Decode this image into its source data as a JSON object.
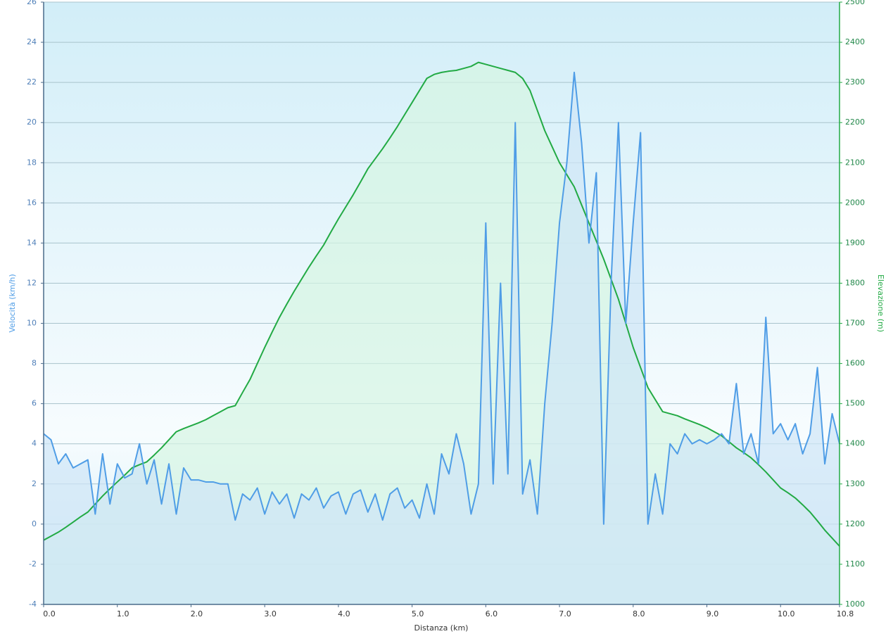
{
  "chart_data": {
    "type": "line",
    "y_label": "Velocità (km/h)",
    "y2_label": "Elevazione (m)",
    "x_label": "Distanza  (km)",
    "xlim": [
      0,
      10.8
    ],
    "xticks": [
      {
        "value": 0,
        "label": "0.0"
      },
      {
        "value": 1,
        "label": "1.0"
      },
      {
        "value": 2,
        "label": "2.0"
      },
      {
        "value": 3,
        "label": "3.0"
      },
      {
        "value": 4,
        "label": "4.0"
      },
      {
        "value": 5,
        "label": "5.0"
      },
      {
        "value": 6,
        "label": "6.0"
      },
      {
        "value": 7,
        "label": "7.0"
      },
      {
        "value": 8,
        "label": "8.0"
      },
      {
        "value": 9,
        "label": "9.0"
      },
      {
        "value": 10,
        "label": "10.0"
      },
      {
        "value": 10.8,
        "label": "10.8"
      }
    ],
    "ylim": [
      -4,
      26
    ],
    "yticks": [
      -4,
      -2,
      0,
      2,
      4,
      6,
      8,
      10,
      12,
      14,
      16,
      18,
      20,
      22,
      24,
      26
    ],
    "y2lim": [
      1000,
      2500
    ],
    "y2ticks": [
      1000,
      1100,
      1200,
      1300,
      1400,
      1500,
      1600,
      1700,
      1800,
      1900,
      2000,
      2100,
      2200,
      2300,
      2400,
      2500
    ],
    "grid": true,
    "x": [
      0.0,
      0.1,
      0.2,
      0.3,
      0.4,
      0.5,
      0.6,
      0.7,
      0.8,
      0.9,
      1.0,
      1.1,
      1.2,
      1.3,
      1.4,
      1.5,
      1.6,
      1.7,
      1.8,
      1.9,
      2.0,
      2.1,
      2.2,
      2.3,
      2.4,
      2.5,
      2.6,
      2.7,
      2.8,
      2.9,
      3.0,
      3.1,
      3.2,
      3.3,
      3.4,
      3.5,
      3.6,
      3.7,
      3.8,
      3.9,
      4.0,
      4.1,
      4.2,
      4.3,
      4.4,
      4.5,
      4.6,
      4.7,
      4.8,
      4.9,
      5.0,
      5.1,
      5.2,
      5.3,
      5.4,
      5.5,
      5.6,
      5.7,
      5.8,
      5.9,
      6.0,
      6.1,
      6.2,
      6.3,
      6.4,
      6.5,
      6.6,
      6.7,
      6.8,
      6.9,
      7.0,
      7.1,
      7.2,
      7.3,
      7.4,
      7.5,
      7.6,
      7.7,
      7.8,
      7.9,
      8.0,
      8.1,
      8.2,
      8.3,
      8.4,
      8.5,
      8.6,
      8.7,
      8.8,
      8.9,
      9.0,
      9.1,
      9.2,
      9.3,
      9.4,
      9.5,
      9.6,
      9.7,
      9.8,
      9.9,
      10.0,
      10.1,
      10.2,
      10.3,
      10.4,
      10.5,
      10.6,
      10.7,
      10.8
    ],
    "series": [
      {
        "color": "#4f9de6",
        "fill": "#cfe6f7",
        "values": [
          4.5,
          4.2,
          3.0,
          3.5,
          2.8,
          3.0,
          3.2,
          0.5,
          3.5,
          1.0,
          3.0,
          2.3,
          2.5,
          4.0,
          2.0,
          3.2,
          1.0,
          3.0,
          0.5,
          2.8,
          2.2,
          2.2,
          2.1,
          2.1,
          2.0,
          2.0,
          0.2,
          1.5,
          1.2,
          1.8,
          0.5,
          1.6,
          1.0,
          1.5,
          0.3,
          1.5,
          1.2,
          1.8,
          0.8,
          1.4,
          1.6,
          0.5,
          1.5,
          1.7,
          0.6,
          1.5,
          0.2,
          1.5,
          1.8,
          0.8,
          1.2,
          0.3,
          2.0,
          0.5,
          3.5,
          2.5,
          4.5,
          3.0,
          0.5,
          2.0,
          15.0,
          2.0,
          12.0,
          2.5,
          20.0,
          1.5,
          3.2,
          0.5,
          6.0,
          10.0,
          15.0,
          18.0,
          22.5,
          19.0,
          14.0,
          17.5,
          0.0,
          12.0,
          20.0,
          10.0,
          15.0,
          19.5,
          0.0,
          2.5,
          0.5,
          4.0,
          3.5,
          4.5,
          4.0,
          4.2,
          4.0,
          4.2,
          4.5,
          4.0,
          7.0,
          3.5,
          4.5,
          3.0,
          10.3,
          4.5,
          5.0,
          4.2,
          5.0,
          3.5,
          4.5,
          7.8,
          3.0,
          5.5,
          4.0
        ]
      },
      {
        "color": "#22aa44",
        "fill": "#d6f5e3",
        "axis": "y2",
        "values": [
          1160,
          1170,
          1180,
          1192,
          1205,
          1218,
          1230,
          1250,
          1270,
          1288,
          1305,
          1322,
          1340,
          1348,
          1355,
          1372,
          1390,
          1410,
          1430,
          1438,
          1445,
          1452,
          1460,
          1470,
          1480,
          1490,
          1495,
          1528,
          1560,
          1600,
          1640,
          1678,
          1715,
          1748,
          1780,
          1810,
          1840,
          1868,
          1895,
          1928,
          1960,
          1990,
          2020,
          2052,
          2085,
          2110,
          2135,
          2162,
          2190,
          2220,
          2250,
          2280,
          2310,
          2320,
          2325,
          2328,
          2330,
          2335,
          2340,
          2350,
          2345,
          2340,
          2335,
          2330,
          2325,
          2310,
          2280,
          2230,
          2180,
          2140,
          2100,
          2070,
          2040,
          1995,
          1950,
          1905,
          1860,
          1810,
          1760,
          1700,
          1640,
          1590,
          1540,
          1510,
          1480,
          1475,
          1470,
          1462,
          1455,
          1448,
          1440,
          1430,
          1420,
          1405,
          1390,
          1378,
          1365,
          1348,
          1330,
          1310,
          1290,
          1278,
          1265,
          1248,
          1230,
          1208,
          1185,
          1165,
          1145
        ]
      }
    ]
  }
}
